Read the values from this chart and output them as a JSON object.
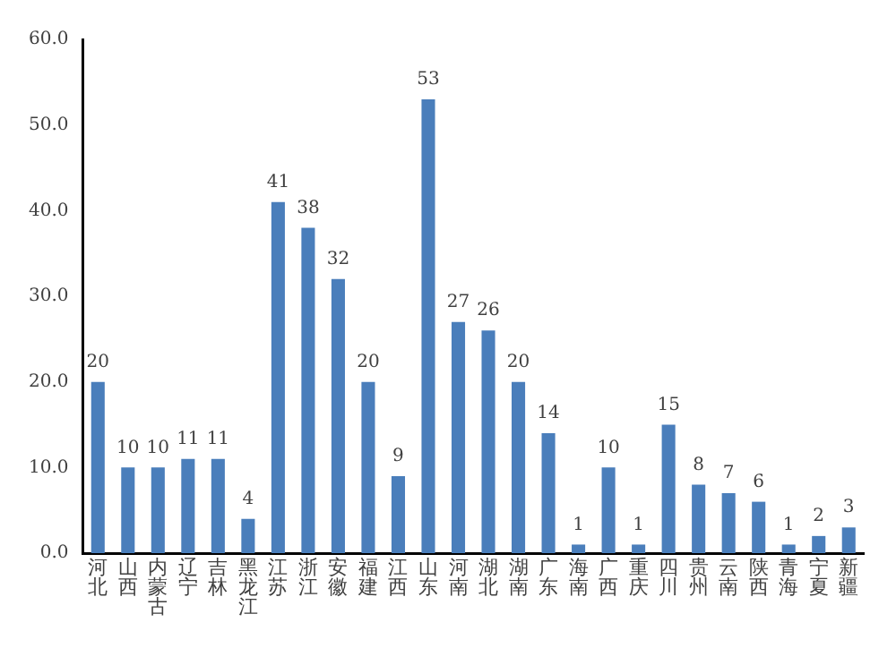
{
  "chart_data": {
    "type": "bar",
    "categories": [
      "河北",
      "山西",
      "内蒙古",
      "辽宁",
      "吉林",
      "黑龙江",
      "江苏",
      "浙江",
      "安徽",
      "福建",
      "江西",
      "山东",
      "河南",
      "湖北",
      "湖南",
      "广东",
      "海南",
      "广西",
      "重庆",
      "四川",
      "贵州",
      "云南",
      "陕西",
      "青海",
      "宁夏",
      "新疆"
    ],
    "values": [
      20,
      10,
      10,
      11,
      11,
      4,
      41,
      38,
      32,
      20,
      9,
      53,
      27,
      26,
      20,
      14,
      1,
      10,
      1,
      15,
      8,
      7,
      6,
      1,
      2,
      3
    ],
    "color": "#4a7ebb",
    "ylim": [
      0,
      60
    ],
    "yticks": [
      {
        "value": 0,
        "label": "0.0"
      },
      {
        "value": 10,
        "label": "10.0"
      },
      {
        "value": 20,
        "label": "20.0"
      },
      {
        "value": 30,
        "label": "30.0"
      },
      {
        "value": 40,
        "label": "40.0"
      },
      {
        "value": 50,
        "label": "50.0"
      },
      {
        "value": 60,
        "label": "60.0"
      }
    ],
    "grid": false,
    "data_labels": true
  }
}
